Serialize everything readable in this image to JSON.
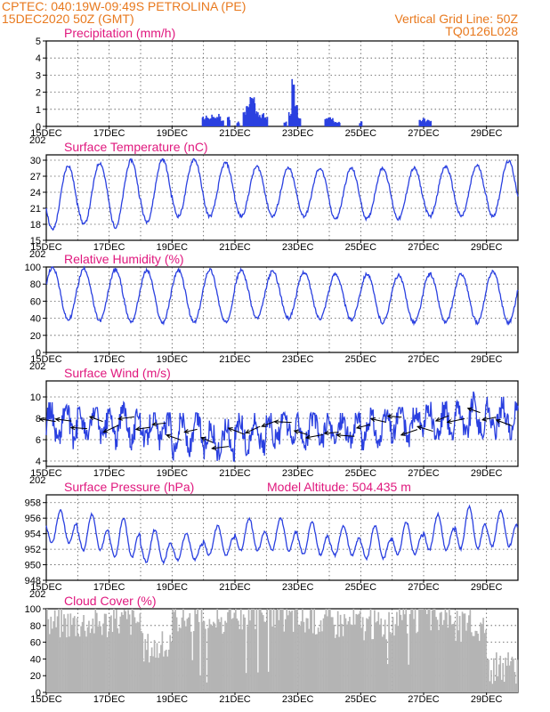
{
  "header": {
    "station": "CPTEC:   040:19W-09:49S   PETROLINA (PE)",
    "run": "15DEC2020 50Z (GMT)",
    "grid_note": "Vertical Grid Line: 50Z",
    "code": "TQ0126L028"
  },
  "colors": {
    "header": "#e8791e",
    "panel_title": "#e0187e",
    "series": "#2a40e0",
    "cloud": "#b4b4b4",
    "wind_vector": "#000000"
  },
  "x_axis": {
    "tick_labels": [
      "15DEC",
      "17DEC",
      "19DEC",
      "21DEC",
      "23DEC",
      "25DEC",
      "27DEC",
      "29DEC"
    ],
    "range_days": [
      15,
      30
    ],
    "year_label": "202"
  },
  "model_altitude": "Model Altitude: 504.435 m",
  "chart_data": [
    {
      "type": "bar",
      "title": "Precipitation (mm/h)",
      "ylim": [
        0,
        5
      ],
      "yticks": [
        "0",
        "1",
        "2",
        "3",
        "4",
        "5"
      ],
      "events": [
        {
          "x": 20.0,
          "v": 0.6
        },
        {
          "x": 20.1,
          "v": 0.7
        },
        {
          "x": 20.2,
          "v": 0.5
        },
        {
          "x": 20.3,
          "v": 0.7
        },
        {
          "x": 20.4,
          "v": 0.6
        },
        {
          "x": 20.5,
          "v": 0.8
        },
        {
          "x": 20.6,
          "v": 0.4
        },
        {
          "x": 20.8,
          "v": 0.6
        },
        {
          "x": 21.1,
          "v": 0.3
        },
        {
          "x": 21.3,
          "v": 0.9
        },
        {
          "x": 21.4,
          "v": 1.3
        },
        {
          "x": 21.5,
          "v": 1.8
        },
        {
          "x": 21.6,
          "v": 1.9
        },
        {
          "x": 21.7,
          "v": 1.1
        },
        {
          "x": 21.8,
          "v": 0.7
        },
        {
          "x": 21.9,
          "v": 0.8
        },
        {
          "x": 22.0,
          "v": 0.6
        },
        {
          "x": 22.6,
          "v": 0.3
        },
        {
          "x": 22.75,
          "v": 1.0
        },
        {
          "x": 22.85,
          "v": 2.8
        },
        {
          "x": 22.95,
          "v": 1.5
        },
        {
          "x": 23.05,
          "v": 0.5
        },
        {
          "x": 23.9,
          "v": 0.5
        },
        {
          "x": 24.0,
          "v": 0.6
        },
        {
          "x": 24.1,
          "v": 0.5
        },
        {
          "x": 24.2,
          "v": 0.3
        },
        {
          "x": 24.3,
          "v": 0.3
        },
        {
          "x": 25.0,
          "v": 0.3
        },
        {
          "x": 26.9,
          "v": 0.4
        },
        {
          "x": 27.0,
          "v": 0.5
        },
        {
          "x": 27.1,
          "v": 0.4
        },
        {
          "x": 27.2,
          "v": 0.4
        }
      ]
    },
    {
      "type": "line",
      "title": "Surface Temperature (nC)",
      "ylim": [
        15,
        31
      ],
      "yticks": [
        "15",
        "18",
        "21",
        "24",
        "27",
        "30"
      ],
      "daily_min": [
        17,
        18,
        17.5,
        18.5,
        19.5,
        19.5,
        19.5,
        19.5,
        19.5,
        19,
        19,
        19,
        19.5,
        19.5,
        19.5
      ],
      "daily_max": [
        29,
        29.5,
        30,
        30.2,
        30.2,
        29.5,
        28.8,
        28.5,
        28.5,
        28.5,
        28.5,
        28.5,
        28.8,
        29,
        29.8
      ]
    },
    {
      "type": "line",
      "title": "Relative Humidity (%)",
      "ylim": [
        0,
        100
      ],
      "yticks": [
        "0",
        "20",
        "40",
        "60",
        "80",
        "100"
      ],
      "daily_max": [
        100,
        98,
        97,
        96,
        96,
        97,
        96,
        95,
        94,
        92,
        92,
        90,
        92,
        92,
        95
      ],
      "daily_min": [
        38,
        37,
        36,
        35,
        35,
        35,
        40,
        40,
        40,
        38,
        35,
        35,
        35,
        35,
        35
      ]
    },
    {
      "type": "line",
      "title": "Surface Wind (m/s)",
      "ylim": [
        3.5,
        11.5
      ],
      "yticks": [
        "4",
        "6",
        "8",
        "10"
      ],
      "mean_speed": [
        7.5,
        7.5,
        7.5,
        7.0,
        6.5,
        6.0,
        6.5,
        7.0,
        7.0,
        7.0,
        7.0,
        7.5,
        7.5,
        8.0,
        8.0
      ],
      "daily_min": [
        5,
        5,
        5,
        5,
        4,
        4,
        4.5,
        5,
        5,
        5,
        5,
        5,
        6,
        6,
        6
      ],
      "daily_max": [
        9.5,
        9,
        9.5,
        8.5,
        8.5,
        8,
        8.5,
        8.5,
        8.5,
        8.5,
        9,
        9,
        10.5,
        10.5,
        10
      ]
    },
    {
      "type": "line",
      "title": "Surface Pressure (hPa)",
      "ylim": [
        948,
        959
      ],
      "yticks": [
        "948",
        "950",
        "952",
        "954",
        "956",
        "958"
      ],
      "daily_max": [
        957,
        956.5,
        956,
        954.5,
        954,
        955,
        956,
        956,
        955.5,
        955,
        955,
        955.5,
        956.5,
        957.5,
        957
      ],
      "daily_min": [
        952,
        951,
        950,
        949.5,
        950,
        950.5,
        951,
        951,
        950.5,
        950.5,
        950,
        950.5,
        951,
        951,
        951.5
      ]
    },
    {
      "type": "area",
      "title": "Cloud Cover (%)",
      "ylim": [
        0,
        100
      ],
      "yticks": [
        "0",
        "20",
        "40",
        "60",
        "80",
        "100"
      ],
      "daily_mean": [
        85,
        85,
        88,
        55,
        92,
        90,
        95,
        90,
        88,
        85,
        82,
        88,
        90,
        80,
        30
      ]
    }
  ]
}
